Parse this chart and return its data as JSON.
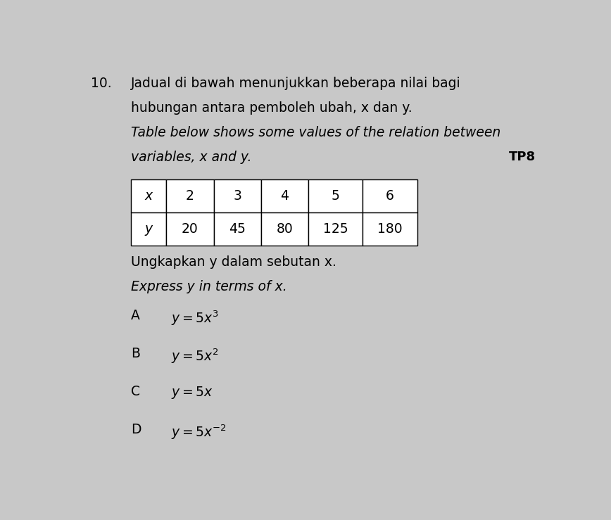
{
  "background_color": "#c8c8c8",
  "question_number": "10.",
  "malay_line1": "Jadual di bawah menunjukkan beberapa nilai bagi",
  "malay_line2": "hubungan antara pemboleh ubah, x dan y.",
  "english_line1": "Table below shows some values of the relation between",
  "english_line2": "variables, x and y.",
  "tag": "TP8",
  "table_x_label": "x",
  "table_y_label": "y",
  "table_x_values": [
    "2",
    "3",
    "4",
    "5",
    "6"
  ],
  "table_y_values": [
    "20",
    "45",
    "80",
    "125",
    "180"
  ],
  "instruction_malay": "Ungkapkan y dalam sebutan x.",
  "instruction_english": "Express y in terms of x.",
  "options": [
    {
      "label": "A",
      "formula": "$y = 5x^3$"
    },
    {
      "label": "B",
      "formula": "$y = 5x^2$"
    },
    {
      "label": "C",
      "formula": "$y = 5x$"
    },
    {
      "label": "D",
      "formula": "$y = 5x^{-2}$"
    }
  ],
  "font_size_main": 13.5,
  "font_size_table": 13.5,
  "font_size_options": 13.5,
  "font_size_tag": 13
}
